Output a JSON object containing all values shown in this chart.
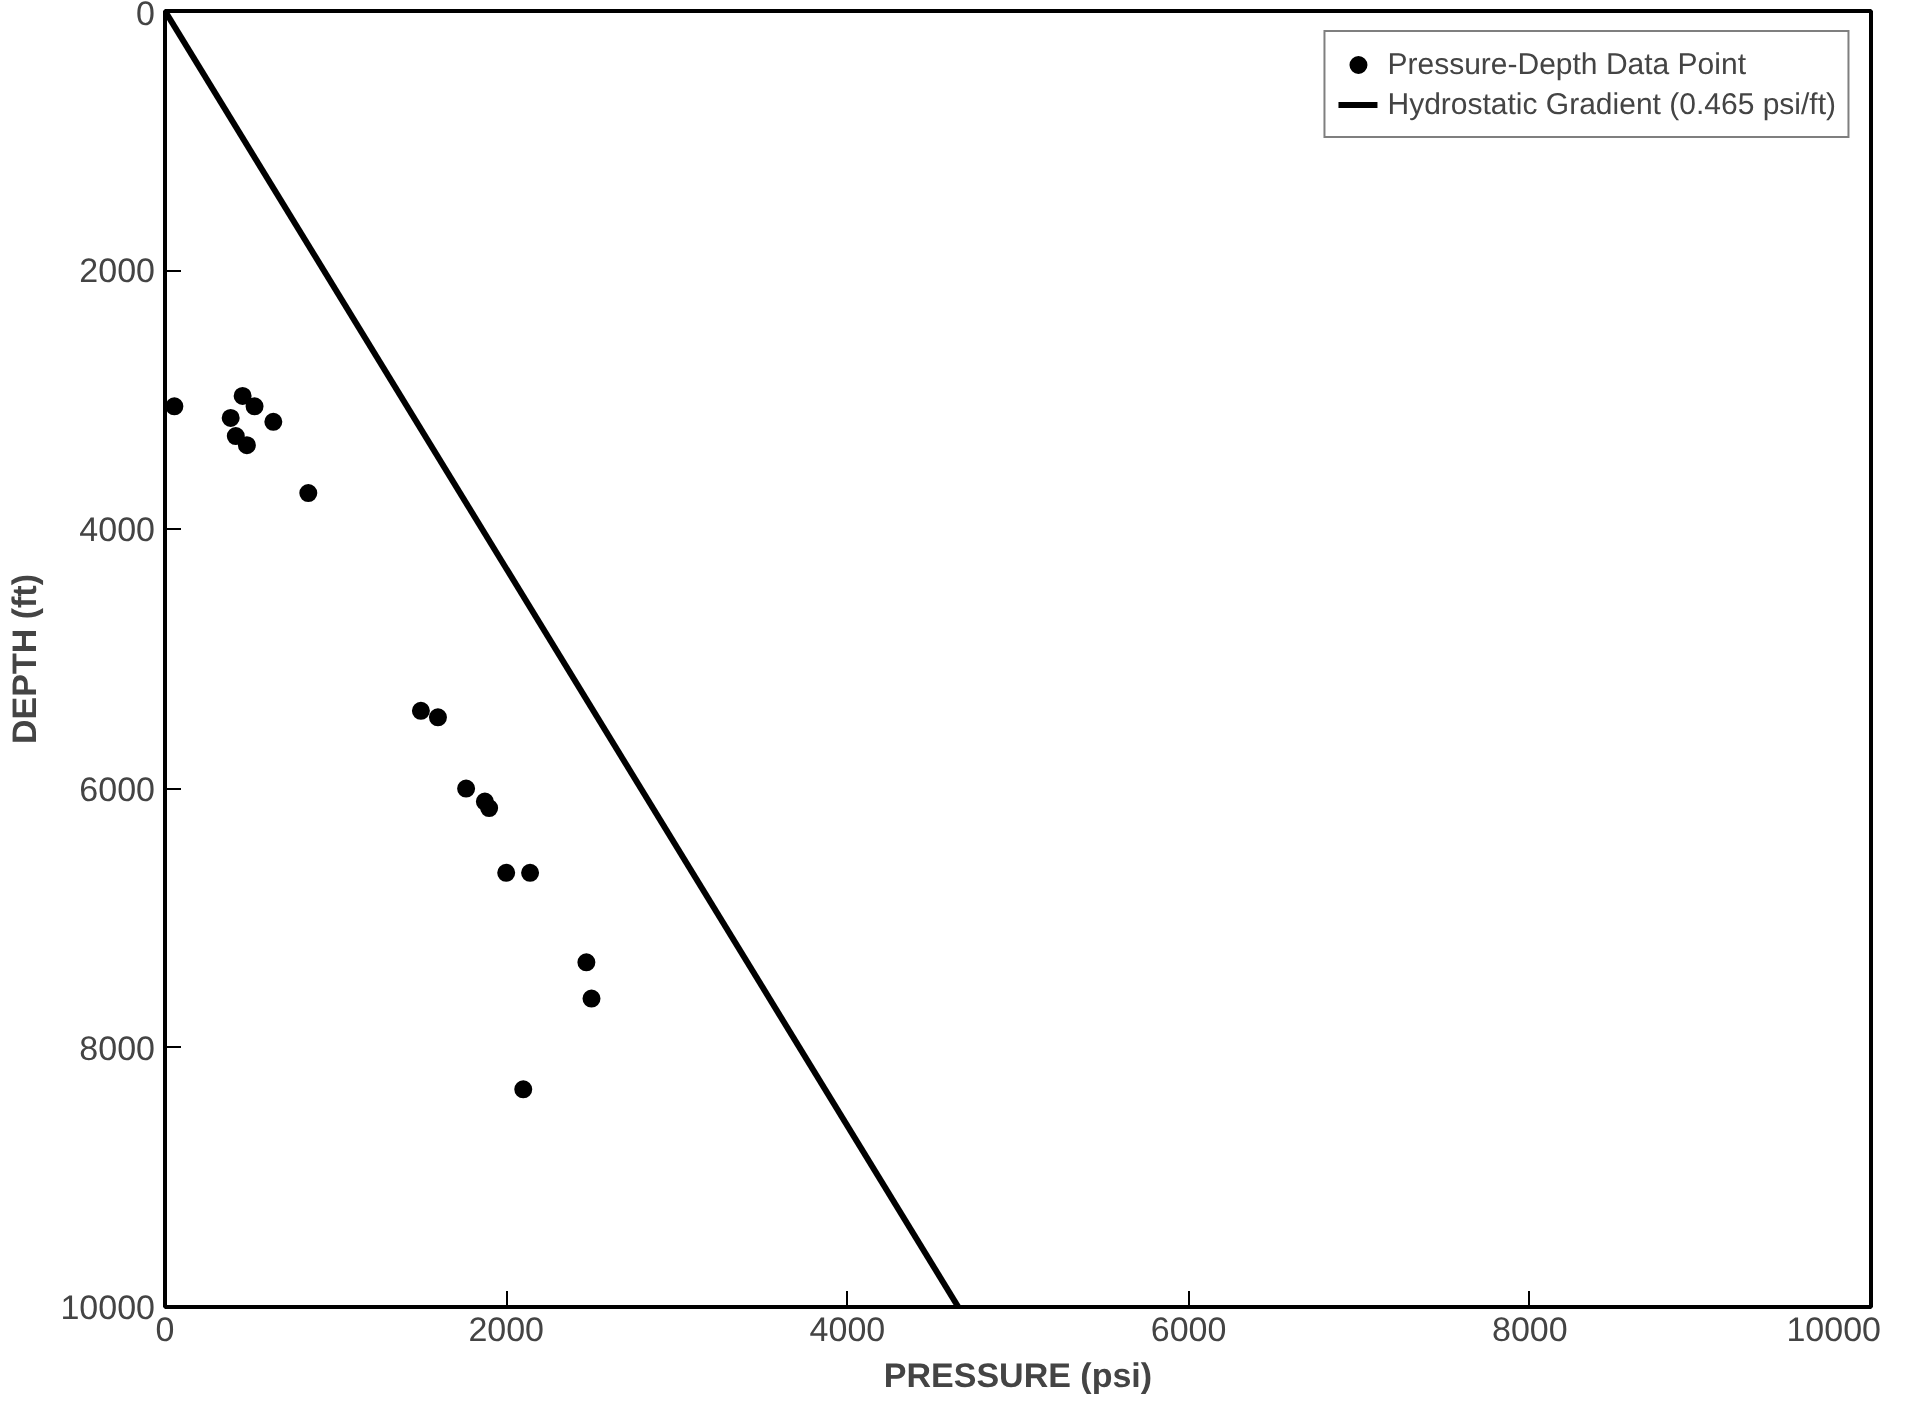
{
  "chart_data": {
    "type": "scatter",
    "xlabel": "PRESSURE (psi)",
    "ylabel": "DEPTH (ft)",
    "xlim": [
      0,
      10000
    ],
    "ylim": [
      10000,
      0
    ],
    "xticks": [
      0,
      2000,
      4000,
      6000,
      8000,
      10000
    ],
    "yticks": [
      0,
      2000,
      4000,
      6000,
      8000,
      10000
    ],
    "grid": false,
    "legend": "top right",
    "series": [
      {
        "name": "Pressure-Depth Data Point",
        "marker": "circle",
        "color": "#000000",
        "x": [
          55,
          455,
          385,
          525,
          635,
          415,
          480,
          840,
          1500,
          1600,
          1765,
          1875,
          1900,
          2000,
          2140,
          2470,
          2500,
          2100
        ],
        "values": [
          3050,
          2970,
          3140,
          3050,
          3170,
          3280,
          3350,
          3720,
          5400,
          5450,
          6000,
          6100,
          6150,
          6650,
          6650,
          7340,
          7620,
          8320
        ]
      },
      {
        "name": "Hydrostatic Gradient (0.465 psi/ft)",
        "type": "line",
        "color": "#000000",
        "line_style": "solid",
        "x": [
          0,
          4650
        ],
        "values": [
          0,
          10000
        ]
      }
    ]
  }
}
